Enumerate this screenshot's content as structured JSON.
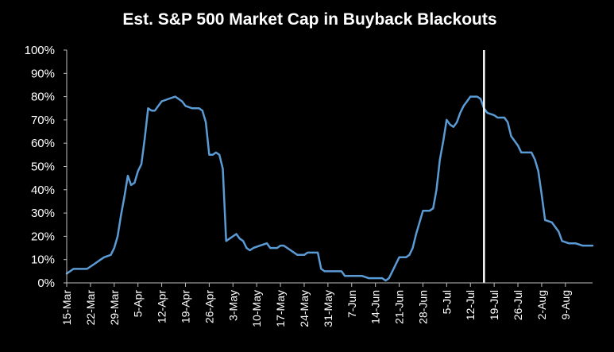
{
  "chart_data": {
    "type": "line",
    "title": "Est. S&P  500 Market Cap in Buyback Blackouts",
    "xlabel": "",
    "ylabel": "",
    "ylim": [
      0,
      100
    ],
    "y_tick_labels": [
      "0%",
      "10%",
      "20%",
      "30%",
      "40%",
      "50%",
      "60%",
      "70%",
      "80%",
      "90%",
      "100%"
    ],
    "x_tick_labels": [
      "15-Mar",
      "22-Mar",
      "29-Mar",
      "5-Apr",
      "12-Apr",
      "19-Apr",
      "26-Apr",
      "3-May",
      "10-May",
      "17-May",
      "24-May",
      "31-May",
      "7-Jun",
      "14-Jun",
      "21-Jun",
      "28-Jun",
      "5-Jul",
      "12-Jul",
      "19-Jul",
      "26-Jul",
      "2-Aug",
      "9-Aug"
    ],
    "x_start": "15-Mar",
    "x_end": "17-Aug",
    "grid": false,
    "legend": "none",
    "line_color": "#5b9bd5",
    "marker_line_color": "#ffffff",
    "vertical_marker": "16-Jul",
    "series": [
      {
        "name": "",
        "points": [
          [
            "15-Mar",
            4
          ],
          [
            "16-Mar",
            5
          ],
          [
            "17-Mar",
            6
          ],
          [
            "19-Mar",
            6
          ],
          [
            "21-Mar",
            6
          ],
          [
            "23-Mar",
            8
          ],
          [
            "25-Mar",
            10
          ],
          [
            "26-Mar",
            11
          ],
          [
            "28-Mar",
            12
          ],
          [
            "29-Mar",
            15
          ],
          [
            "30-Mar",
            20
          ],
          [
            "31-Mar",
            29
          ],
          [
            "1-Apr",
            37
          ],
          [
            "2-Apr",
            46
          ],
          [
            "3-Apr",
            42
          ],
          [
            "4-Apr",
            43
          ],
          [
            "5-Apr",
            48
          ],
          [
            "6-Apr",
            51
          ],
          [
            "7-Apr",
            62
          ],
          [
            "8-Apr",
            75
          ],
          [
            "9-Apr",
            74
          ],
          [
            "10-Apr",
            74
          ],
          [
            "11-Apr",
            76
          ],
          [
            "12-Apr",
            78
          ],
          [
            "14-Apr",
            79
          ],
          [
            "16-Apr",
            80
          ],
          [
            "18-Apr",
            78
          ],
          [
            "19-Apr",
            76
          ],
          [
            "21-Apr",
            75
          ],
          [
            "23-Apr",
            75
          ],
          [
            "24-Apr",
            74
          ],
          [
            "25-Apr",
            69
          ],
          [
            "26-Apr",
            55
          ],
          [
            "27-Apr",
            55
          ],
          [
            "28-Apr",
            56
          ],
          [
            "29-Apr",
            55
          ],
          [
            "30-Apr",
            49
          ],
          [
            "1-May",
            18
          ],
          [
            "2-May",
            19
          ],
          [
            "3-May",
            20
          ],
          [
            "4-May",
            21
          ],
          [
            "5-May",
            19
          ],
          [
            "6-May",
            18
          ],
          [
            "7-May",
            15
          ],
          [
            "8-May",
            14
          ],
          [
            "9-May",
            15
          ],
          [
            "11-May",
            16
          ],
          [
            "13-May",
            17
          ],
          [
            "14-May",
            15
          ],
          [
            "16-May",
            15
          ],
          [
            "17-May",
            16
          ],
          [
            "18-May",
            16
          ],
          [
            "20-May",
            14
          ],
          [
            "22-May",
            12
          ],
          [
            "24-May",
            12
          ],
          [
            "25-May",
            13
          ],
          [
            "28-May",
            13
          ],
          [
            "29-May",
            6
          ],
          [
            "30-May",
            5
          ],
          [
            "31-May",
            5
          ],
          [
            "2-Jun",
            5
          ],
          [
            "4-Jun",
            5
          ],
          [
            "5-Jun",
            3
          ],
          [
            "7-Jun",
            3
          ],
          [
            "9-Jun",
            3
          ],
          [
            "10-Jun",
            3
          ],
          [
            "12-Jun",
            2
          ],
          [
            "14-Jun",
            2
          ],
          [
            "16-Jun",
            2
          ],
          [
            "17-Jun",
            1
          ],
          [
            "18-Jun",
            2
          ],
          [
            "19-Jun",
            5
          ],
          [
            "20-Jun",
            8
          ],
          [
            "21-Jun",
            11
          ],
          [
            "23-Jun",
            11
          ],
          [
            "24-Jun",
            12
          ],
          [
            "25-Jun",
            15
          ],
          [
            "26-Jun",
            21
          ],
          [
            "27-Jun",
            26
          ],
          [
            "28-Jun",
            31
          ],
          [
            "30-Jun",
            31
          ],
          [
            "1-Jul",
            32
          ],
          [
            "2-Jul",
            40
          ],
          [
            "3-Jul",
            53
          ],
          [
            "4-Jul",
            61
          ],
          [
            "5-Jul",
            70
          ],
          [
            "6-Jul",
            68
          ],
          [
            "7-Jul",
            67
          ],
          [
            "8-Jul",
            69
          ],
          [
            "9-Jul",
            73
          ],
          [
            "10-Jul",
            76
          ],
          [
            "11-Jul",
            78
          ],
          [
            "12-Jul",
            80
          ],
          [
            "14-Jul",
            80
          ],
          [
            "15-Jul",
            79
          ],
          [
            "16-Jul",
            75
          ],
          [
            "17-Jul",
            73
          ],
          [
            "19-Jul",
            72
          ],
          [
            "20-Jul",
            71
          ],
          [
            "22-Jul",
            71
          ],
          [
            "23-Jul",
            69
          ],
          [
            "24-Jul",
            63
          ],
          [
            "26-Jul",
            59
          ],
          [
            "27-Jul",
            56
          ],
          [
            "29-Jul",
            56
          ],
          [
            "30-Jul",
            56
          ],
          [
            "31-Jul",
            53
          ],
          [
            "1-Aug",
            48
          ],
          [
            "2-Aug",
            38
          ],
          [
            "3-Aug",
            27
          ],
          [
            "5-Aug",
            26
          ],
          [
            "7-Aug",
            22
          ],
          [
            "8-Aug",
            18
          ],
          [
            "10-Aug",
            17
          ],
          [
            "12-Aug",
            17
          ],
          [
            "14-Aug",
            16
          ],
          [
            "17-Aug",
            16
          ]
        ]
      }
    ]
  }
}
